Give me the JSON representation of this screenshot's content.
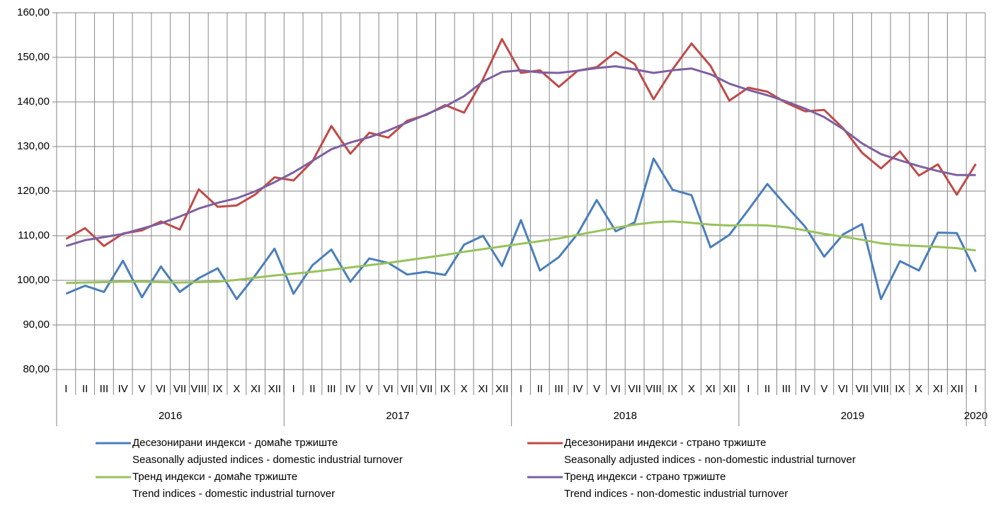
{
  "chart_data": {
    "type": "line",
    "categories": [
      "I",
      "II",
      "III",
      "IV",
      "V",
      "VI",
      "VII",
      "VIII",
      "IX",
      "X",
      "XI",
      "XII",
      "I",
      "II",
      "III",
      "IV",
      "V",
      "VI",
      "VII",
      "VII",
      "IX",
      "X",
      "XI",
      "XII",
      "I",
      "II",
      "III",
      "IV",
      "V",
      "VI",
      "VII",
      "VIII",
      "IX",
      "X",
      "XI",
      "XII",
      "I",
      "II",
      "III",
      "IV",
      "V",
      "VI",
      "VII",
      "VIII",
      "IX",
      "X",
      "XI",
      "XII",
      "I"
    ],
    "groups": [
      {
        "label": "2016",
        "size": 12
      },
      {
        "label": "2017",
        "size": 12
      },
      {
        "label": "2018",
        "size": 12
      },
      {
        "label": "2019",
        "size": 12
      },
      {
        "label": "2020",
        "size": 1
      }
    ],
    "ylim": [
      80,
      160
    ],
    "yticks": [
      {
        "value": 80,
        "label": "80,00"
      },
      {
        "value": 90,
        "label": "90,00"
      },
      {
        "value": 100,
        "label": "100,00"
      },
      {
        "value": 110,
        "label": "110,00"
      },
      {
        "value": 120,
        "label": "120,00"
      },
      {
        "value": 130,
        "label": "130,00"
      },
      {
        "value": 140,
        "label": "140,00"
      },
      {
        "value": 150,
        "label": "150,00"
      },
      {
        "value": 160,
        "label": "160,00"
      }
    ],
    "grid": true,
    "series": [
      {
        "name": "Десезонирани индекси - домаће тржиште",
        "name_en": "Seasonally adjusted indices - domestic industrial turnover",
        "color": "#4a7ebb",
        "values": [
          97.0,
          98.8,
          97.4,
          104.4,
          96.2,
          103.1,
          97.4,
          100.5,
          102.7,
          95.8,
          101.2,
          107.1,
          97.0,
          103.4,
          106.9,
          99.7,
          104.9,
          103.9,
          101.3,
          101.9,
          101.2,
          108.0,
          110.0,
          103.2,
          113.5,
          102.2,
          105.2,
          110.5,
          118.0,
          111.0,
          113.0,
          127.3,
          120.3,
          119.1,
          107.4,
          110.2,
          115.8,
          121.6,
          116.7,
          112.0,
          105.3,
          110.3,
          112.6,
          95.8,
          104.3,
          102.2,
          110.7,
          110.6,
          101.9
        ]
      },
      {
        "name": "Десезонирани индекси - страно тржиште",
        "name_en": "Seasonally adjusted indices - non-domestic industrial turnover",
        "color": "#be4b48",
        "values": [
          109.3,
          111.7,
          107.7,
          110.5,
          111.2,
          113.2,
          111.4,
          120.4,
          116.5,
          116.8,
          119.3,
          123.1,
          122.4,
          126.7,
          134.6,
          128.4,
          133.1,
          132.0,
          135.8,
          137.1,
          139.3,
          137.6,
          145.1,
          154.1,
          146.5,
          147.1,
          143.4,
          147.0,
          147.8,
          151.2,
          148.5,
          140.6,
          147.3,
          153.1,
          148.1,
          140.3,
          143.2,
          142.3,
          139.8,
          137.9,
          138.2,
          134.1,
          128.6,
          125.1,
          128.9,
          123.5,
          126.0,
          119.2,
          126.1
        ]
      },
      {
        "name": "Тренд индекси - домаће тржиште",
        "name_en": "Trend indices - domestic industrial turnover",
        "color": "#98c25a",
        "values": [
          99.4,
          99.5,
          99.6,
          99.7,
          99.7,
          99.6,
          99.5,
          99.6,
          99.7,
          100.1,
          100.6,
          101.1,
          101.5,
          101.9,
          102.4,
          102.9,
          103.4,
          103.9,
          104.5,
          105.1,
          105.7,
          106.4,
          107.0,
          107.6,
          108.2,
          108.8,
          109.4,
          110.2,
          111.0,
          111.8,
          112.5,
          113.0,
          113.2,
          112.9,
          112.5,
          112.3,
          112.4,
          112.3,
          111.9,
          111.2,
          110.4,
          109.8,
          109.1,
          108.3,
          107.9,
          107.7,
          107.5,
          107.2,
          106.7
        ]
      },
      {
        "name": "Тренд индекси - страно тржиште",
        "name_en": "Trend indices - non-domestic industrial turnover",
        "color": "#7d60a0",
        "values": [
          107.7,
          109.0,
          109.7,
          110.4,
          111.6,
          112.8,
          114.3,
          116.1,
          117.4,
          118.4,
          120.0,
          122.0,
          124.2,
          126.8,
          129.4,
          130.9,
          132.1,
          133.6,
          135.4,
          137.2,
          139.0,
          141.3,
          144.6,
          146.7,
          147.1,
          146.6,
          146.5,
          147.0,
          147.6,
          148.0,
          147.3,
          146.5,
          147.1,
          147.5,
          146.2,
          144.1,
          142.7,
          141.5,
          140.1,
          138.5,
          136.6,
          133.9,
          130.7,
          128.3,
          126.9,
          125.6,
          124.5,
          123.6,
          123.6
        ]
      }
    ]
  }
}
